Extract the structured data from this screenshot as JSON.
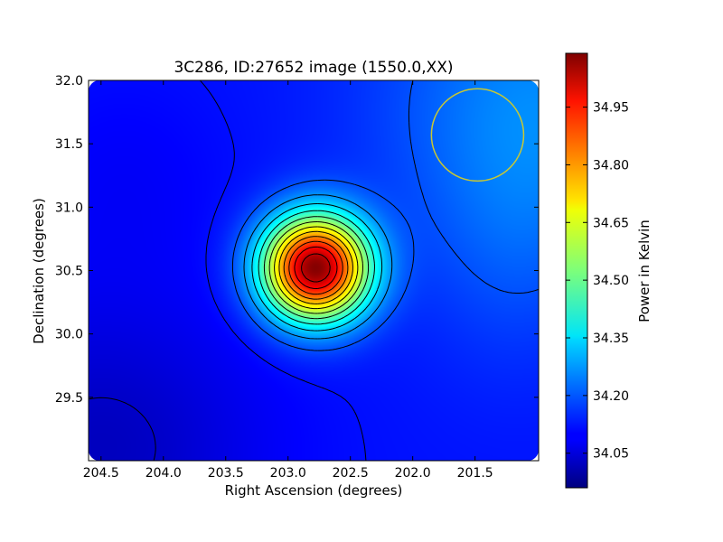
{
  "chart_data": {
    "type": "heatmap",
    "title": "3C286, ID:27652 image (1550.0,XX)",
    "xlabel": "Right Ascension (degrees)",
    "ylabel": "Declination (degrees)",
    "xlim": [
      204.6,
      200.99
    ],
    "ylim": [
      29.0,
      32.0
    ],
    "x_ticks": [
      "204.5",
      "204.0",
      "203.5",
      "203.0",
      "202.5",
      "202.0",
      "201.5"
    ],
    "x_tick_values": [
      204.5,
      204.0,
      203.5,
      203.0,
      202.5,
      202.0,
      201.5
    ],
    "y_ticks": [
      "29.5",
      "30.0",
      "30.5",
      "31.0",
      "31.5",
      "32.0"
    ],
    "y_tick_values": [
      29.5,
      30.0,
      30.5,
      31.0,
      31.5,
      32.0
    ],
    "source_peak": {
      "ra": 202.78,
      "dec": 30.52,
      "value": 35.08
    },
    "beam_circle": {
      "ra": 201.48,
      "dec": 31.57,
      "radius_deg": 0.37,
      "color": "#c8c832"
    },
    "colorbar": {
      "label": "Power in Kelvin",
      "ticks": [
        "34.05",
        "34.20",
        "34.35",
        "34.50",
        "34.65",
        "34.80",
        "34.95"
      ],
      "tick_values": [
        34.05,
        34.2,
        34.35,
        34.5,
        34.65,
        34.8,
        34.95
      ],
      "vmin": 33.96,
      "vmax": 35.09,
      "colormap": "jet"
    },
    "grid": false,
    "contours": true
  }
}
